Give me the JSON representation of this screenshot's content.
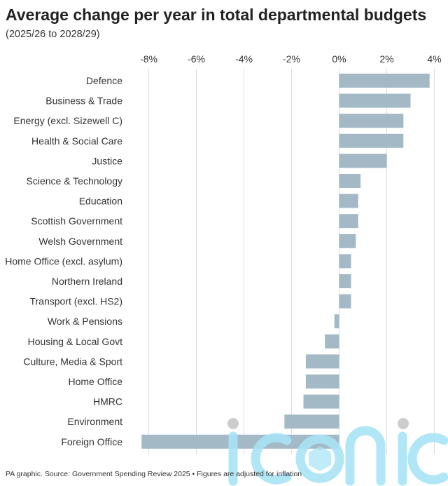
{
  "title": "Average change per year in total departmental budgets",
  "subtitle": "(2025/26 to 2028/29)",
  "footer": "PA graphic. Source: Government Spending Review 2025 • Figures are adjusted for inflation",
  "watermark_text": "iconic",
  "colors": {
    "bar": "#a3b9c6",
    "grid": "#dddddd",
    "text": "#333333",
    "watermark": "#a8e4f5",
    "watermark_dot": "#c8c8c8"
  },
  "chart_data": {
    "type": "bar",
    "orientation": "horizontal",
    "title": "Average change per year in total departmental budgets",
    "subtitle": "(2025/26 to 2028/29)",
    "xlim": [
      -9,
      4.5
    ],
    "x_ticks": [
      -8,
      -6,
      -4,
      -2,
      0,
      2,
      4
    ],
    "x_tick_labels": [
      "-8%",
      "-6%",
      "-4%",
      "-2%",
      "0%",
      "2%",
      "4%"
    ],
    "x_axis_position": "top",
    "grid": true,
    "categories": [
      "Defence",
      "Business & Trade",
      "Energy (excl. Sizewell C)",
      "Health & Social Care",
      "Justice",
      "Science & Technology",
      "Education",
      "Scottish Government",
      "Welsh Government",
      "Home Office (excl. asylum)",
      "Northern Ireland",
      "Transport (excl. HS2)",
      "Work & Pensions",
      "Housing & Local Govt",
      "Culture, Media & Sport",
      "Home Office",
      "HMRC",
      "Environment",
      "Foreign Office"
    ],
    "values": [
      3.8,
      3.0,
      2.7,
      2.7,
      2.0,
      0.9,
      0.8,
      0.8,
      0.7,
      0.5,
      0.5,
      0.5,
      -0.2,
      -0.6,
      -1.4,
      -1.4,
      -1.5,
      -2.3,
      -8.3
    ],
    "unit": "%"
  }
}
